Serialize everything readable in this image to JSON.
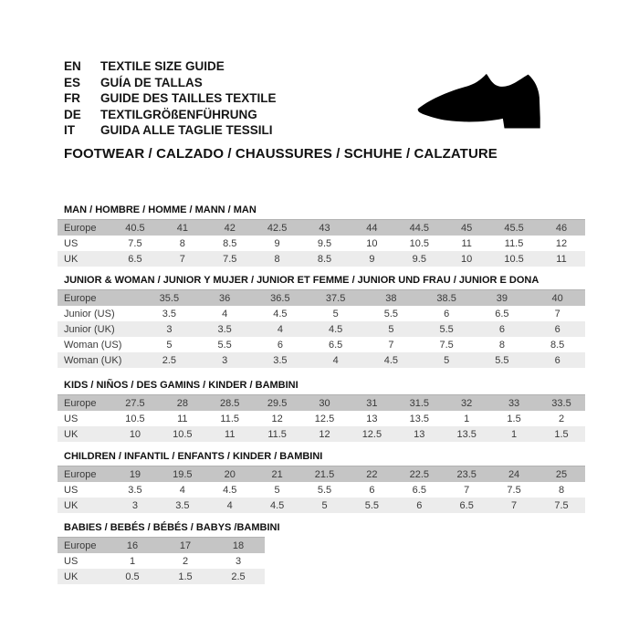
{
  "header": {
    "languages": [
      {
        "code": "EN",
        "label": "TEXTILE SIZE GUIDE"
      },
      {
        "code": "ES",
        "label": "GUÍA DE TALLAS"
      },
      {
        "code": "FR",
        "label": "GUIDE DES TAILLES TEXTILE"
      },
      {
        "code": "DE",
        "label": "TEXTILGRÖßENFÜHRUNG"
      },
      {
        "code": "IT",
        "label": "GUIDA ALLE TAGLIE TESSILI"
      }
    ],
    "category_line": "FOOTWEAR / CALZADO / CHAUSSURES / SCHUHE / CALZATURE",
    "icon": "dress-shoe-icon"
  },
  "colors": {
    "header_row_bg": "#c5c5c5",
    "alt_row_bg": "#ececec",
    "shoe": "#000000"
  },
  "tables": [
    {
      "id": "man",
      "title": "MAN / HOMBRE / HOMME / MANN / MAN",
      "rows": [
        {
          "label": "Europe",
          "header": true,
          "values": [
            "40.5",
            "41",
            "42",
            "42.5",
            "43",
            "44",
            "44.5",
            "45",
            "45.5",
            "46"
          ]
        },
        {
          "label": "US",
          "values": [
            "7.5",
            "8",
            "8.5",
            "9",
            "9.5",
            "10",
            "10.5",
            "11",
            "11.5",
            "12"
          ]
        },
        {
          "label": "UK",
          "values": [
            "6.5",
            "7",
            "7.5",
            "8",
            "8.5",
            "9",
            "9.5",
            "10",
            "10.5",
            "11"
          ]
        }
      ]
    },
    {
      "id": "junior-woman",
      "title": "JUNIOR & WOMAN / JUNIOR Y MUJER / JUNIOR ET FEMME / JUNIOR UND FRAU / JUNIOR E DONA",
      "rows": [
        {
          "label": "Europe",
          "header": true,
          "values": [
            "35.5",
            "36",
            "36.5",
            "37.5",
            "38",
            "38.5",
            "39",
            "40"
          ]
        },
        {
          "label": "Junior (US)",
          "values": [
            "3.5",
            "4",
            "4.5",
            "5",
            "5.5",
            "6",
            "6.5",
            "7"
          ]
        },
        {
          "label": "Junior (UK)",
          "values": [
            "3",
            "3.5",
            "4",
            "4.5",
            "5",
            "5.5",
            "6",
            "6"
          ]
        },
        {
          "label": "Woman (US)",
          "values": [
            "5",
            "5.5",
            "6",
            "6.5",
            "7",
            "7.5",
            "8",
            "8.5"
          ]
        },
        {
          "label": "Woman (UK)",
          "values": [
            "2.5",
            "3",
            "3.5",
            "4",
            "4.5",
            "5",
            "5.5",
            "6"
          ]
        }
      ]
    },
    {
      "id": "kids",
      "title": "KIDS / NIÑOS / DES GAMINS / KINDER / BAMBINI",
      "rows": [
        {
          "label": "Europe",
          "header": true,
          "values": [
            "27.5",
            "28",
            "28.5",
            "29.5",
            "30",
            "31",
            "31.5",
            "32",
            "33",
            "33.5"
          ]
        },
        {
          "label": "US",
          "values": [
            "10.5",
            "11",
            "11.5",
            "12",
            "12.5",
            "13",
            "13.5",
            "1",
            "1.5",
            "2"
          ]
        },
        {
          "label": "UK",
          "values": [
            "10",
            "10.5",
            "11",
            "11.5",
            "12",
            "12.5",
            "13",
            "13.5",
            "1",
            "1.5"
          ]
        }
      ]
    },
    {
      "id": "children",
      "title": "CHILDREN / INFANTIL / ENFANTS / KINDER / BAMBINI",
      "rows": [
        {
          "label": "Europe",
          "header": true,
          "values": [
            "19",
            "19.5",
            "20",
            "21",
            "21.5",
            "22",
            "22.5",
            "23.5",
            "24",
            "25"
          ]
        },
        {
          "label": "US",
          "values": [
            "3.5",
            "4",
            "4.5",
            "5",
            "5.5",
            "6",
            "6.5",
            "7",
            "7.5",
            "8"
          ]
        },
        {
          "label": "UK",
          "values": [
            "3",
            "3.5",
            "4",
            "4.5",
            "5",
            "5.5",
            "6",
            "6.5",
            "7",
            "7.5"
          ]
        }
      ]
    },
    {
      "id": "babies",
      "title": "BABIES / BEBÉS / BÉBÉS / BABYS /BAMBINI",
      "rows": [
        {
          "label": "Europe",
          "header": true,
          "values": [
            "16",
            "17",
            "18"
          ]
        },
        {
          "label": "US",
          "values": [
            "1",
            "2",
            "3"
          ]
        },
        {
          "label": "UK",
          "values": [
            "0.5",
            "1.5",
            "2.5"
          ]
        }
      ]
    }
  ]
}
